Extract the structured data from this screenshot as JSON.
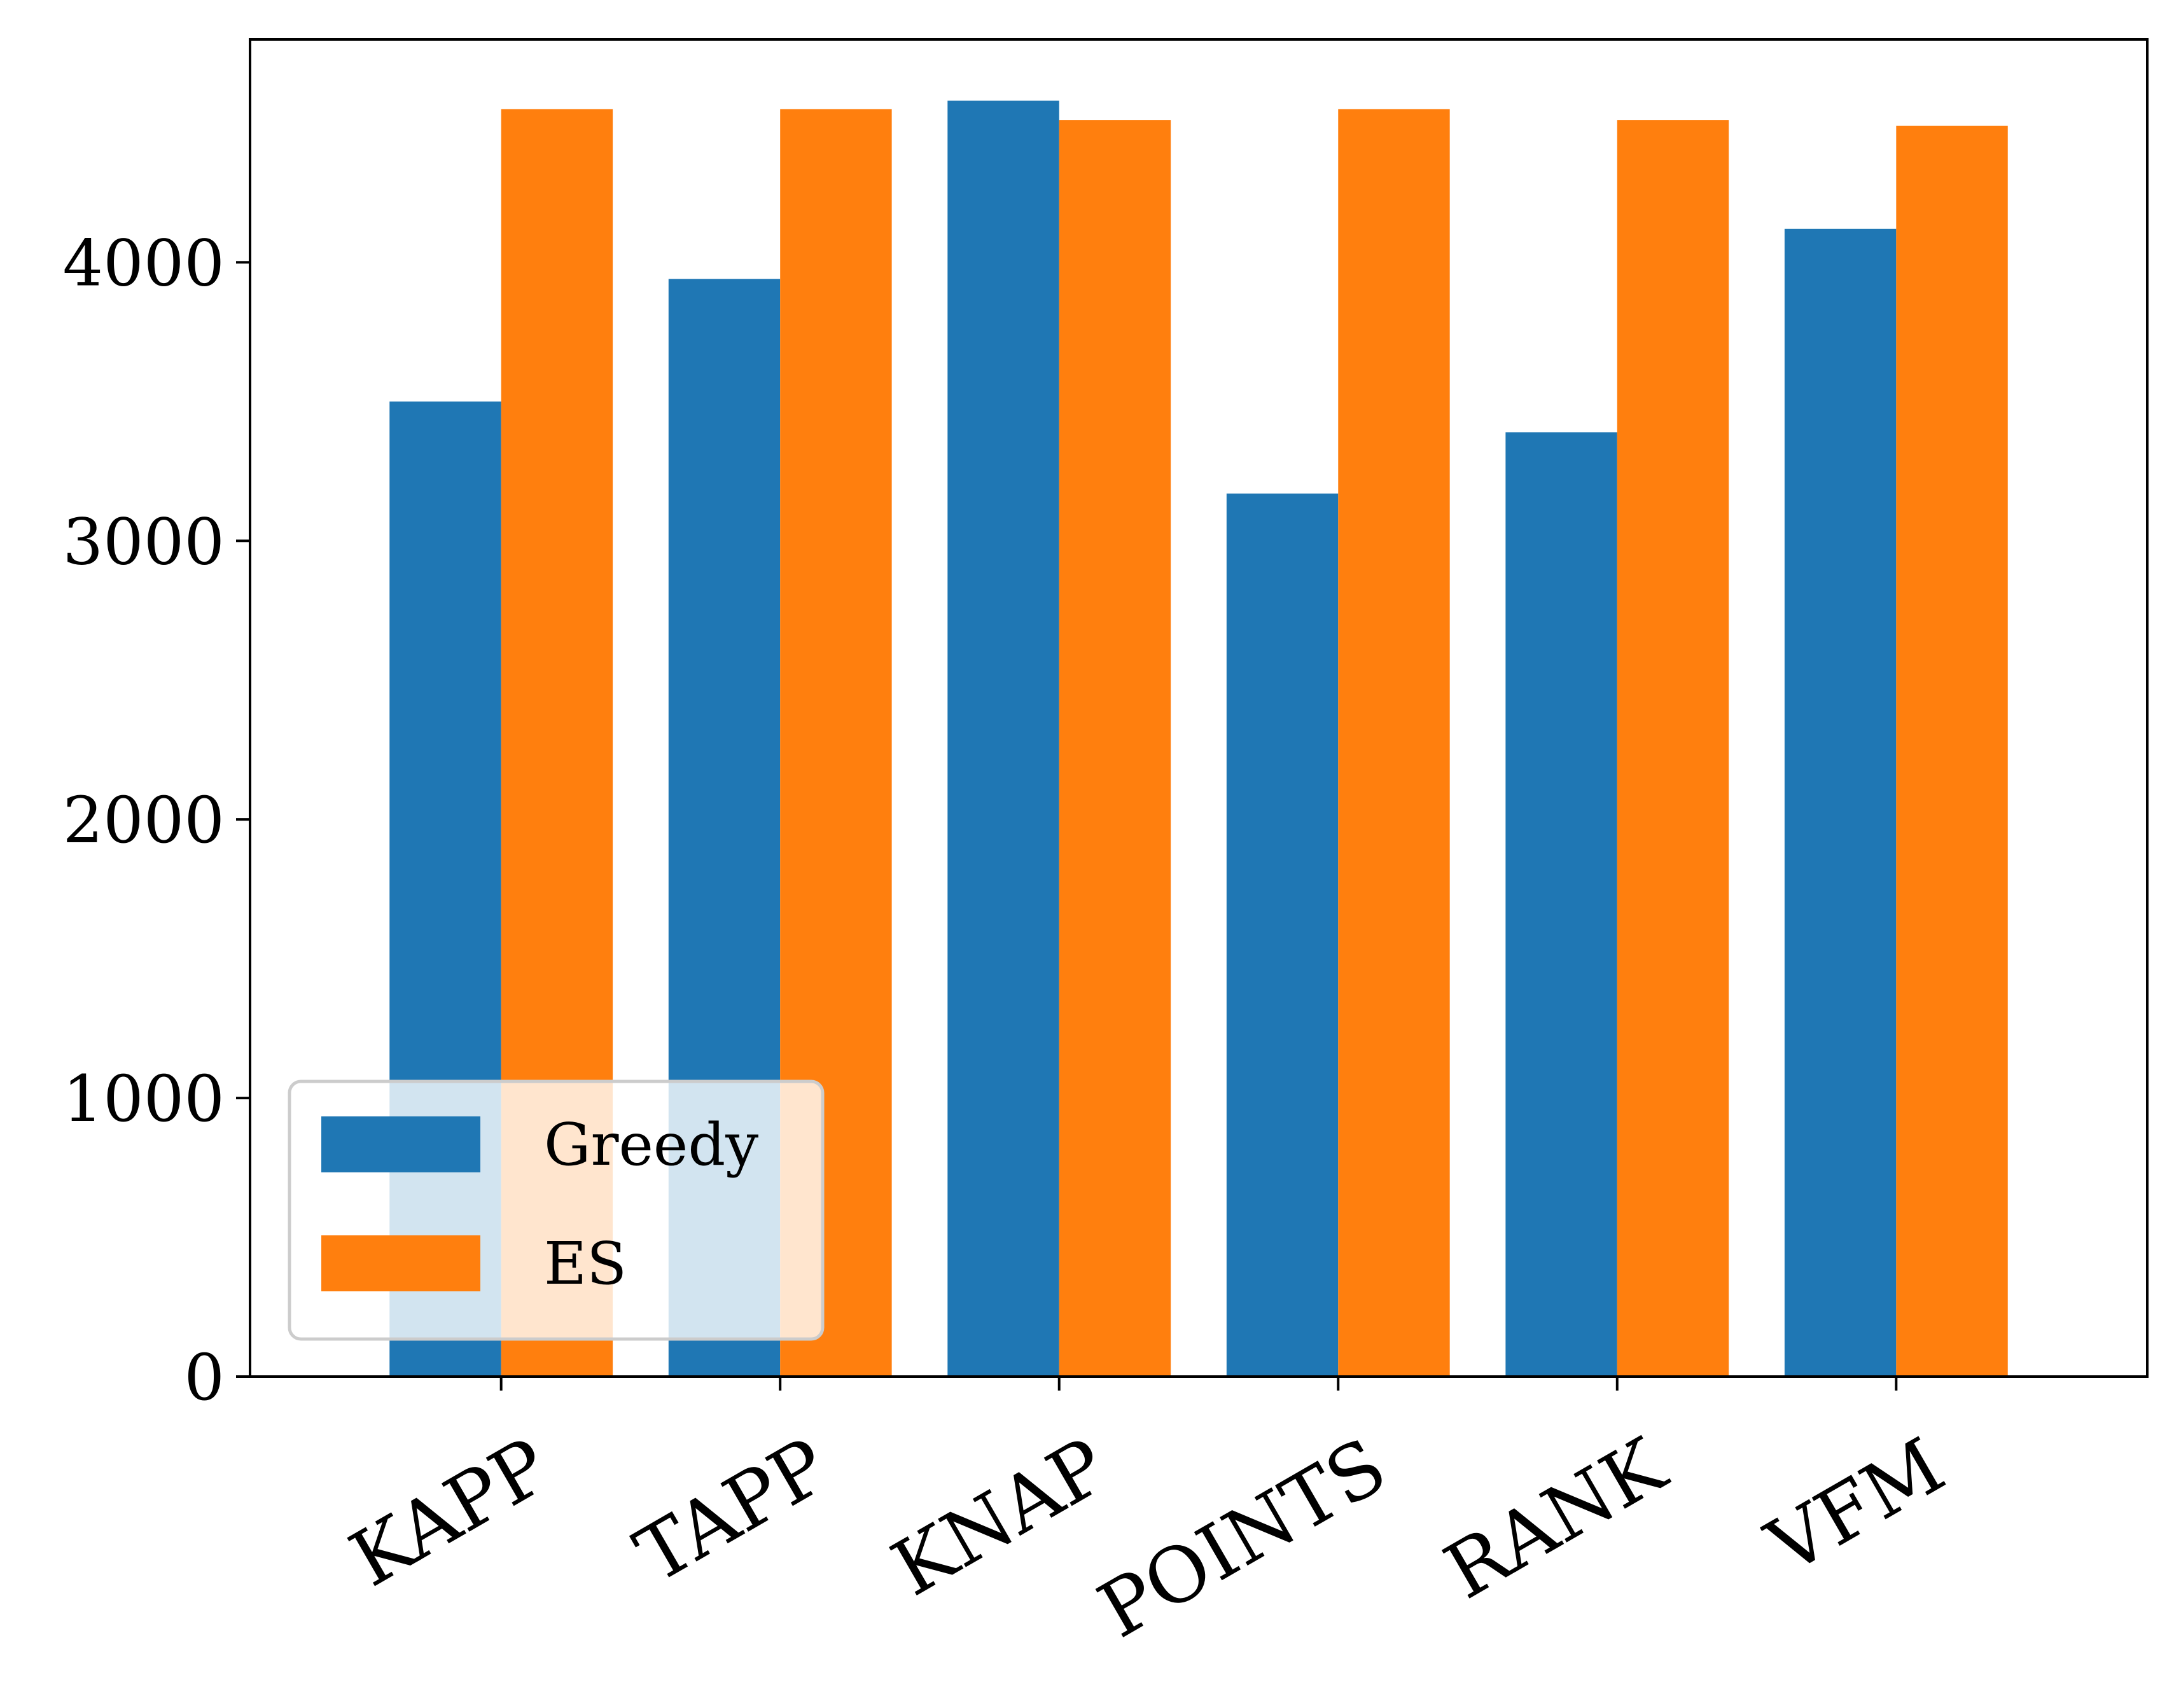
{
  "chart_data": {
    "type": "bar",
    "categories": [
      "KAPP",
      "TAPP",
      "KNAP",
      "POINTS",
      "RANK",
      "VFM"
    ],
    "series": [
      {
        "name": "Greedy",
        "color": "#1f77b4",
        "values": [
          3500,
          3940,
          4580,
          3170,
          3390,
          4120
        ]
      },
      {
        "name": "ES",
        "color": "#ff7f0e",
        "values": [
          4550,
          4550,
          4510,
          4550,
          4510,
          4490
        ]
      }
    ],
    "ylim": [
      0,
      4800
    ],
    "yticks": [
      0,
      1000,
      2000,
      3000,
      4000
    ],
    "xlabel": "",
    "ylabel": "",
    "title": "",
    "grid": false,
    "legend_position": "lower-left",
    "x_label_rotation_deg": -30
  }
}
